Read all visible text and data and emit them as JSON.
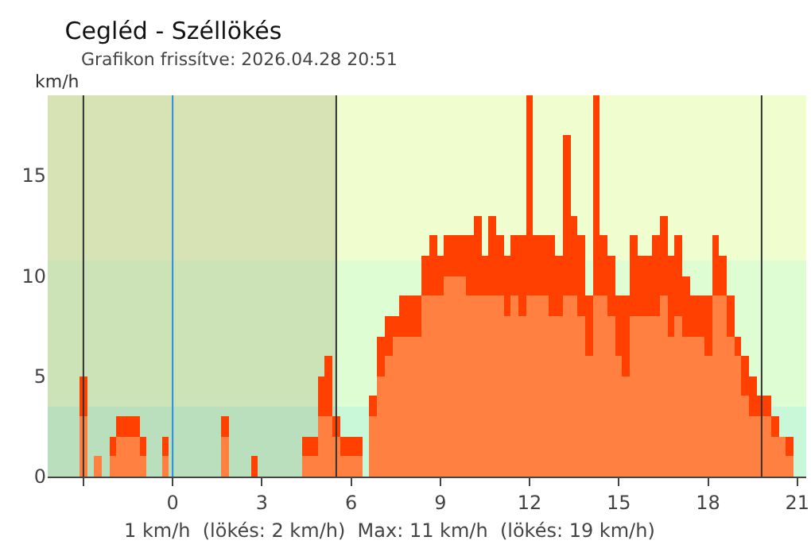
{
  "chart_data": {
    "type": "bar",
    "stacked": true,
    "title": "Cegléd - Széllökés",
    "subtitle": "Grafikon frissítve: 2026.04.28 20:51",
    "ylabel": "km/h",
    "x": [
      -3,
      -2.75,
      -2.5,
      -2.25,
      -2,
      -1.75,
      -1.5,
      -1.25,
      -1,
      -0.75,
      -0.5,
      -0.25,
      0,
      0.5,
      1,
      1.5,
      1.75,
      2,
      2.5,
      2.75,
      3,
      3.5,
      4,
      4.5,
      4.75,
      5,
      5.25,
      5.5,
      5.75,
      6,
      6.25,
      6.5,
      6.75,
      7,
      7.25,
      7.5,
      7.75,
      8,
      8.25,
      8.5,
      8.75,
      9,
      9.25,
      9.5,
      9.75,
      10,
      10.25,
      10.5,
      10.75,
      11,
      11.25,
      11.5,
      11.75,
      12,
      12.25,
      12.5,
      12.75,
      13,
      13.25,
      13.5,
      13.75,
      14,
      14.25,
      14.5,
      14.75,
      15,
      15.25,
      15.5,
      15.75,
      16,
      16.25,
      16.5,
      16.75,
      17,
      17.25,
      17.5,
      17.75,
      18,
      18.25,
      18.5,
      18.75,
      19,
      19.25,
      19.5,
      19.75,
      20,
      20.25,
      20.5,
      20.75
    ],
    "series": [
      {
        "color": "#ff8040",
        "values": [
          3,
          0,
          1,
          0,
          1,
          2,
          2,
          2,
          1,
          0,
          0,
          1,
          0,
          0,
          0,
          0,
          2,
          0,
          0,
          0,
          0,
          0,
          0,
          1,
          1,
          3,
          3,
          2,
          1,
          1,
          1,
          0,
          3,
          5,
          6,
          7,
          7,
          7,
          7,
          9,
          9,
          9,
          10,
          10,
          10,
          9,
          9,
          9,
          9,
          9,
          8,
          9,
          8,
          9,
          9,
          9,
          8,
          8,
          9,
          9,
          8,
          6,
          9,
          9,
          8,
          6,
          5,
          8,
          8,
          8,
          8,
          9,
          7,
          8,
          7,
          7,
          7,
          6,
          9,
          9,
          7,
          6,
          4,
          3,
          3,
          3,
          2,
          2,
          1
        ]
      },
      {
        "color": "#ff4000",
        "values": [
          2,
          0,
          0,
          0,
          1,
          1,
          1,
          1,
          1,
          0,
          0,
          1,
          0,
          0,
          0,
          0,
          1,
          0,
          0,
          1,
          0,
          0,
          0,
          1,
          1,
          2,
          3,
          1,
          1,
          1,
          1,
          0,
          1,
          2,
          2,
          1,
          2,
          2,
          2,
          2,
          3,
          2,
          2,
          2,
          2,
          3,
          4,
          2,
          4,
          3,
          3,
          3,
          4,
          10,
          3,
          3,
          4,
          3,
          8,
          4,
          4,
          3,
          10,
          3,
          3,
          3,
          4,
          4,
          3,
          3,
          4,
          4,
          4,
          4,
          3,
          2,
          2,
          3,
          3,
          2,
          2,
          1,
          2,
          2,
          1,
          1,
          1,
          0,
          1
        ]
      }
    ],
    "xlim": [
      -4.2,
      21.3
    ],
    "xticks": [
      {
        "value": -3,
        "label": null
      },
      0,
      3,
      6,
      9,
      12,
      15,
      18,
      21
    ],
    "ylim": [
      0,
      19
    ],
    "yticks": [
      0,
      5,
      10,
      15
    ],
    "ref_lines": [
      {
        "axis": "x",
        "value": -3,
        "color": "#333333"
      },
      {
        "axis": "x",
        "value": 0,
        "color": "#2a8ee0"
      },
      {
        "axis": "x",
        "value": 5.5,
        "color": "#333333"
      },
      {
        "axis": "x",
        "value": 19.8,
        "color": "#333333"
      }
    ],
    "bands": [
      {
        "axis": "y",
        "from": 0,
        "to": 3.5,
        "color": "#c8f8d8"
      },
      {
        "axis": "y",
        "from": 3.5,
        "to": 10.8,
        "color": "#dffdd2"
      },
      {
        "axis": "y",
        "from": 10.8,
        "to": 19,
        "color": "#effdcf"
      },
      {
        "axis": "x",
        "from": -4.2,
        "to": 5.5,
        "color": "#8a8a5a"
      }
    ],
    "annotations": [
      "1 km/h  (lökés: 2 km/h)  Max: 11 km/h  (lökés: 19 km/h)"
    ]
  }
}
